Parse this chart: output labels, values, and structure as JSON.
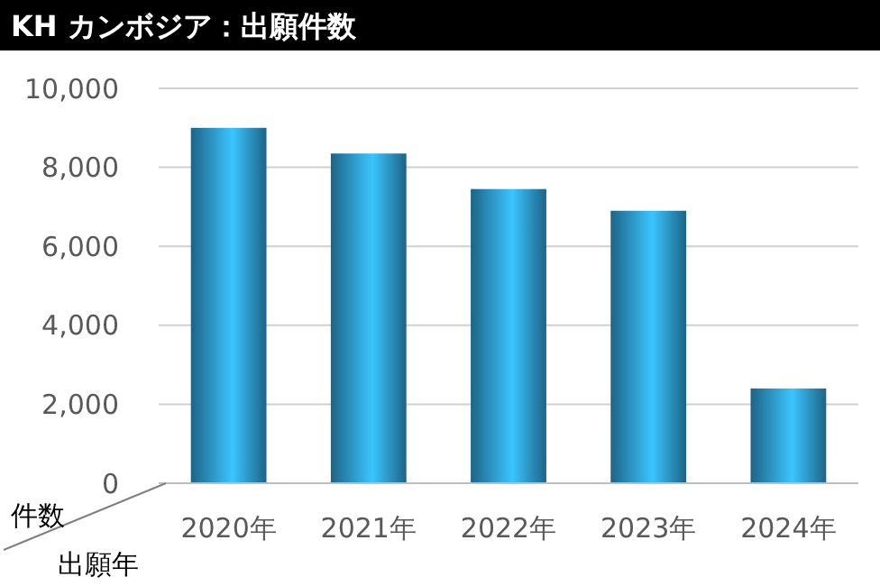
{
  "chart_data": {
    "type": "bar",
    "title": "KH カンボジア：出願件数",
    "xlabel": "出願年",
    "ylabel": "件数",
    "categories": [
      "2020年",
      "2021年",
      "2022年",
      "2023年",
      "2024年"
    ],
    "values": [
      9000,
      8350,
      7450,
      6900,
      2400
    ],
    "color": "#2a8fc0",
    "ylim": [
      0,
      10000
    ],
    "yticks": [
      {
        "value": 0,
        "label": "0"
      },
      {
        "value": 2000,
        "label": "2,000"
      },
      {
        "value": 4000,
        "label": "4,000"
      },
      {
        "value": 6000,
        "label": "6,000"
      },
      {
        "value": 8000,
        "label": "8,000"
      },
      {
        "value": 10000,
        "label": "10,000"
      }
    ],
    "grid": "y"
  }
}
